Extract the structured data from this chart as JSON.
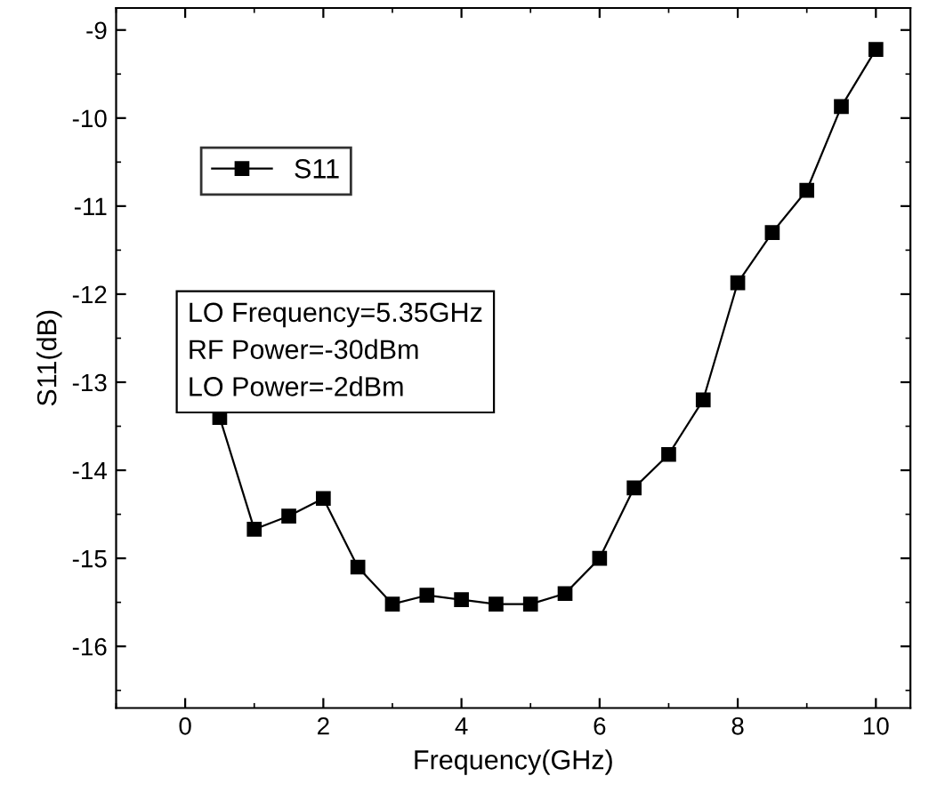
{
  "chart_data": {
    "type": "line",
    "xlabel": "Frequency(GHz)",
    "ylabel": "S11(dB)",
    "x": [
      0.5,
      1,
      1.5,
      2,
      2.5,
      3,
      3.5,
      4,
      4.5,
      5,
      5.5,
      6,
      6.5,
      7,
      7.5,
      8,
      8.5,
      9,
      9.5,
      10
    ],
    "series": [
      {
        "name": "S11",
        "color": "#000000",
        "values": [
          -13.4,
          -14.67,
          -14.52,
          -14.32,
          -15.1,
          -15.52,
          -15.42,
          -15.47,
          -15.52,
          -15.52,
          -15.4,
          -15.0,
          -14.2,
          -13.82,
          -13.2,
          -11.87,
          -11.3,
          -10.82,
          -9.87,
          -9.22
        ]
      }
    ],
    "xlim": [
      -1,
      10.5
    ],
    "xticks": [
      0,
      2,
      4,
      6,
      8,
      10
    ],
    "ylim": [
      -16.7,
      -8.75
    ],
    "yticks": [
      -16,
      -15,
      -14,
      -13,
      -12,
      -11,
      -10,
      -9
    ],
    "marker": "square",
    "line_style": "solid",
    "legend": "top left",
    "grid": false,
    "annotations": [
      "LO Frequency=5.35GHz\nRF Power=-30dBm\nLO Power=-2dBm"
    ]
  }
}
